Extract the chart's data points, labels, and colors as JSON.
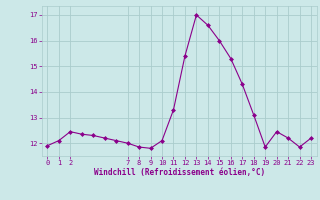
{
  "x": [
    0,
    1,
    2,
    3,
    4,
    5,
    6,
    7,
    8,
    9,
    10,
    11,
    12,
    13,
    14,
    15,
    16,
    17,
    18,
    19,
    20,
    21,
    22,
    23
  ],
  "y": [
    11.9,
    12.1,
    12.45,
    12.35,
    12.3,
    12.2,
    12.1,
    12.0,
    11.85,
    11.8,
    12.1,
    13.3,
    15.4,
    17.0,
    16.6,
    16.0,
    15.3,
    14.3,
    13.1,
    11.85,
    12.45,
    12.2,
    11.85,
    12.2
  ],
  "line_color": "#8B008B",
  "marker": "D",
  "marker_size": 2.0,
  "bg_color": "#cce8e8",
  "grid_color": "#aacccc",
  "xlabel": "Windchill (Refroidissement éolien,°C)",
  "ylim": [
    11.5,
    17.35
  ],
  "yticks": [
    12,
    13,
    14,
    15,
    16,
    17
  ],
  "xticks": [
    0,
    1,
    2,
    7,
    8,
    9,
    10,
    11,
    12,
    13,
    14,
    15,
    16,
    17,
    18,
    19,
    20,
    21,
    22,
    23
  ],
  "font_color": "#8B008B",
  "tick_fontsize": 5.0,
  "xlabel_fontsize": 5.5
}
